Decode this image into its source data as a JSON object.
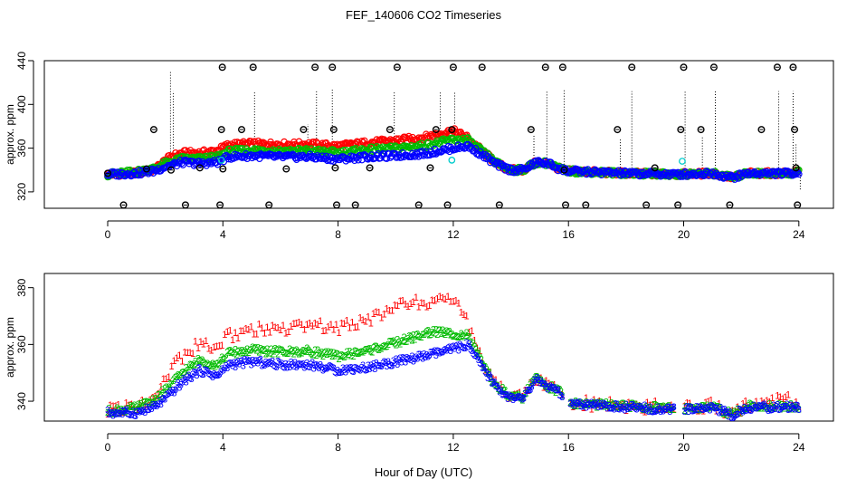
{
  "title": "FEF_140606  CO2 Timeseries",
  "xlabel": "Hour of Day (UTC)",
  "chart_data": [
    {
      "type": "scatter",
      "ylabel": "approx. ppm",
      "xlim": [
        -2.2,
        25.2
      ],
      "ylim": [
        305,
        440
      ],
      "xticks": [
        0,
        4,
        8,
        12,
        16,
        20,
        24
      ],
      "yticks": [
        320,
        360,
        400,
        440
      ],
      "colors": {
        "black": "#000000",
        "red": "#ff0000",
        "green": "#00bb00",
        "blue": "#0000ff",
        "cyan": "#00cccc"
      },
      "base_profile": [
        [
          0,
          336
        ],
        [
          1,
          337
        ],
        [
          1.6,
          339
        ],
        [
          2,
          343
        ],
        [
          2.6,
          347
        ],
        [
          3.2,
          346
        ],
        [
          3.8,
          347
        ],
        [
          4.2,
          352
        ],
        [
          5,
          353
        ],
        [
          6,
          352
        ],
        [
          7,
          352
        ],
        [
          8,
          350
        ],
        [
          9,
          352
        ],
        [
          10,
          353
        ],
        [
          11,
          355
        ],
        [
          11.8,
          359
        ],
        [
          12.5,
          362
        ],
        [
          13,
          354
        ],
        [
          13.5,
          345
        ],
        [
          14,
          340
        ],
        [
          14.4,
          340
        ],
        [
          14.9,
          347
        ],
        [
          15.3,
          346
        ],
        [
          15.7,
          341
        ],
        [
          16,
          339
        ],
        [
          18,
          337
        ],
        [
          19.8,
          336
        ],
        [
          21,
          337
        ],
        [
          21.7,
          333
        ],
        [
          22.2,
          337
        ],
        [
          23.7,
          337
        ],
        [
          24,
          338
        ]
      ],
      "series": [
        {
          "name": "red",
          "offset": [
            [
              0,
              0
            ],
            [
              1.6,
              1
            ],
            [
              2.2,
              8
            ],
            [
              4,
              11
            ],
            [
              8,
              12
            ],
            [
              12,
              16
            ],
            [
              12.6,
              6
            ],
            [
              13.5,
              1
            ],
            [
              14,
              0
            ],
            [
              24,
              0
            ]
          ]
        },
        {
          "name": "green",
          "offset": [
            [
              0,
              0
            ],
            [
              2,
              3
            ],
            [
              4,
              5
            ],
            [
              8,
              6
            ],
            [
              12,
              8
            ],
            [
              13,
              3
            ],
            [
              14,
              0
            ],
            [
              24,
              0
            ]
          ]
        },
        {
          "name": "blue",
          "offset": [
            [
              0,
              0
            ],
            [
              24,
              0
            ]
          ]
        }
      ],
      "black_points": [
        [
          0,
          337
        ],
        [
          0.55,
          308
        ],
        [
          1.35,
          341
        ],
        [
          1.6,
          377
        ],
        [
          2.2,
          340
        ],
        [
          2.7,
          308
        ],
        [
          3.2,
          342
        ],
        [
          3.9,
          308
        ],
        [
          3.95,
          377
        ],
        [
          3.98,
          434
        ],
        [
          4,
          341
        ],
        [
          4.65,
          377
        ],
        [
          5.05,
          434
        ],
        [
          5.6,
          308
        ],
        [
          6.2,
          341
        ],
        [
          6.8,
          377
        ],
        [
          7.2,
          434
        ],
        [
          7.8,
          434
        ],
        [
          7.85,
          377
        ],
        [
          7.9,
          342
        ],
        [
          7.95,
          308
        ],
        [
          8.6,
          308
        ],
        [
          9.1,
          342
        ],
        [
          9.8,
          377
        ],
        [
          10.05,
          434
        ],
        [
          10.8,
          308
        ],
        [
          11.2,
          342
        ],
        [
          11.4,
          377
        ],
        [
          11.8,
          308
        ],
        [
          11.95,
          377
        ],
        [
          12,
          434
        ],
        [
          13,
          434
        ],
        [
          13.6,
          308
        ],
        [
          14.7,
          377
        ],
        [
          15.2,
          434
        ],
        [
          15.8,
          434
        ],
        [
          15.85,
          340
        ],
        [
          15.9,
          308
        ],
        [
          16.6,
          308
        ],
        [
          17.7,
          377
        ],
        [
          18.2,
          434
        ],
        [
          18.7,
          308
        ],
        [
          19,
          342
        ],
        [
          19.8,
          308
        ],
        [
          19.9,
          377
        ],
        [
          20,
          434
        ],
        [
          20.6,
          377
        ],
        [
          21.05,
          434
        ],
        [
          21.6,
          308
        ],
        [
          22.7,
          377
        ],
        [
          23.25,
          434
        ],
        [
          23.8,
          434
        ],
        [
          23.85,
          377
        ],
        [
          23.9,
          342
        ],
        [
          23.95,
          308
        ]
      ],
      "cyan_points": [
        [
          3.95,
          349
        ],
        [
          11.95,
          349
        ],
        [
          19.95,
          348
        ]
      ],
      "black_spikes": [
        [
          2.18,
          430
        ],
        [
          2.28,
          412
        ],
        [
          5.1,
          412
        ],
        [
          6.05,
          366
        ],
        [
          6.95,
          382
        ],
        [
          7.25,
          412
        ],
        [
          7.8,
          414
        ],
        [
          9.95,
          412
        ],
        [
          10.15,
          368
        ],
        [
          11.55,
          412
        ],
        [
          12.05,
          412
        ],
        [
          14.8,
          372
        ],
        [
          15.25,
          412
        ],
        [
          15.85,
          414
        ],
        [
          17.8,
          369
        ],
        [
          18.2,
          412
        ],
        [
          20.05,
          412
        ],
        [
          20.65,
          370
        ],
        [
          21.1,
          412
        ],
        [
          23.3,
          412
        ],
        [
          23.8,
          412
        ],
        [
          23.9,
          365
        ],
        [
          24.05,
          322
        ]
      ]
    },
    {
      "type": "scatter",
      "ylabel": "approx. ppm",
      "xlim": [
        -2.2,
        25.2
      ],
      "ylim": [
        333,
        385
      ],
      "xticks": [
        0,
        4,
        8,
        12,
        16,
        20,
        24
      ],
      "yticks": [
        340,
        360,
        380
      ],
      "colors": {
        "red": "#ff0000",
        "green": "#00bb00",
        "blue": "#0000ff"
      },
      "base_profile": [
        [
          0,
          336
        ],
        [
          1,
          336
        ],
        [
          1.6,
          338
        ],
        [
          2,
          341
        ],
        [
          2.6,
          347
        ],
        [
          3.2,
          351
        ],
        [
          3.8,
          349
        ],
        [
          4.2,
          353
        ],
        [
          5,
          354
        ],
        [
          6,
          353
        ],
        [
          7,
          353
        ],
        [
          8,
          351
        ],
        [
          9,
          352
        ],
        [
          10,
          354
        ],
        [
          11,
          356
        ],
        [
          11.8,
          358
        ],
        [
          12.5,
          360
        ],
        [
          13,
          352
        ],
        [
          13.5,
          345
        ],
        [
          14,
          341
        ],
        [
          14.4,
          341
        ],
        [
          14.9,
          348
        ],
        [
          15.3,
          345
        ],
        [
          15.7,
          343
        ],
        [
          16,
          339
        ],
        [
          18,
          338
        ],
        [
          19.8,
          337
        ],
        [
          21,
          338
        ],
        [
          21.7,
          335
        ],
        [
          22.2,
          338
        ],
        [
          23.7,
          338
        ],
        [
          24,
          338
        ]
      ],
      "series": [
        {
          "name": "1",
          "color": "red",
          "offset": [
            [
              0,
              1
            ],
            [
              1.5,
              3
            ],
            [
              2.2,
              9
            ],
            [
              4,
              10
            ],
            [
              8,
              15
            ],
            [
              10.5,
              20
            ],
            [
              12,
              17
            ],
            [
              12.6,
              6
            ],
            [
              13.3,
              1
            ],
            [
              14,
              0.5
            ],
            [
              22.5,
              1
            ],
            [
              23.6,
              3
            ],
            [
              24,
              1
            ]
          ]
        },
        {
          "name": "2",
          "color": "green",
          "offset": [
            [
              0,
              0.5
            ],
            [
              2,
              3
            ],
            [
              4,
              4
            ],
            [
              8,
              5
            ],
            [
              11.3,
              8
            ],
            [
              12.6,
              3
            ],
            [
              13.3,
              0.5
            ],
            [
              24,
              0.3
            ]
          ]
        },
        {
          "name": "3",
          "color": "blue",
          "offset": [
            [
              0,
              0
            ],
            [
              24,
              0
            ]
          ]
        }
      ]
    }
  ]
}
